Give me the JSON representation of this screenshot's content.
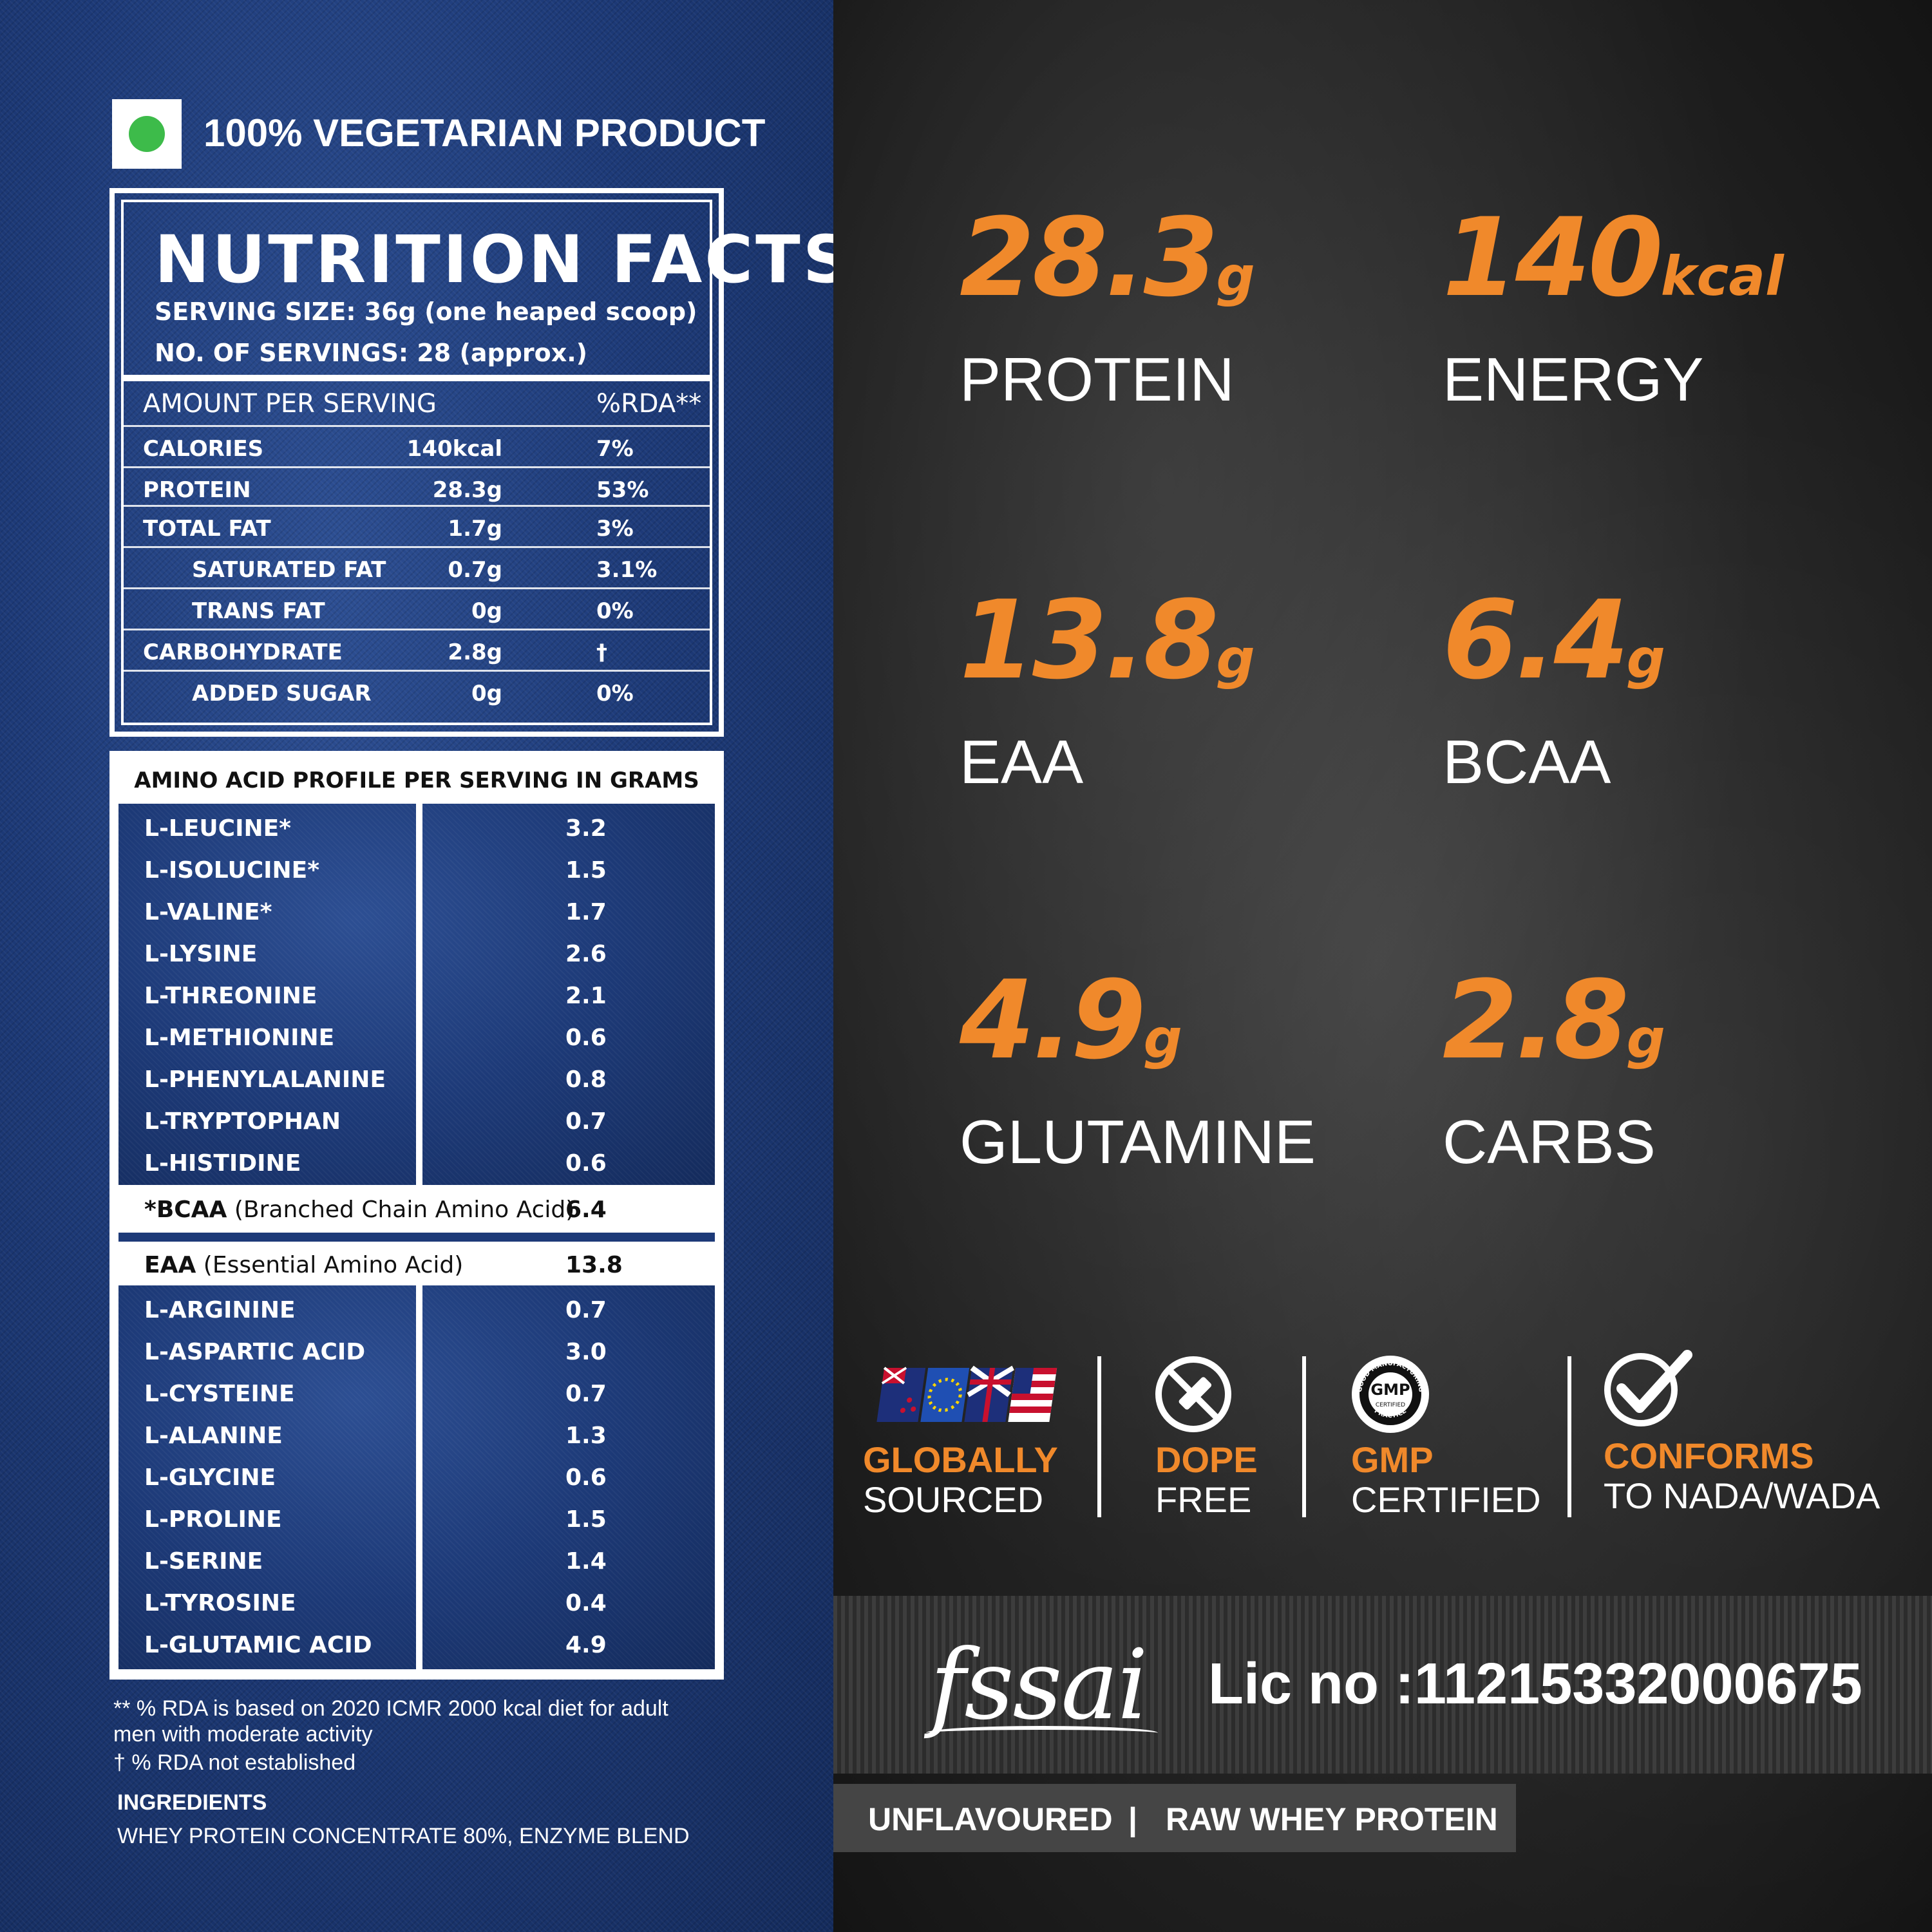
{
  "veg_label": "100% VEGETARIAN PRODUCT",
  "nutrition": {
    "title": "NUTRITION FACTS",
    "serving_size": "SERVING SIZE: 36g (one heaped scoop)",
    "servings": "NO. OF SERVINGS: 28 (approx.)",
    "header_amount": "AMOUNT PER SERVING",
    "header_rda": "%RDA**",
    "rows": [
      {
        "name": "CALORIES",
        "amount": "140kcal",
        "rda": "7%"
      },
      {
        "name": "PROTEIN",
        "amount": "28.3g",
        "rda": "53%"
      },
      {
        "name": "TOTAL FAT",
        "amount": "1.7g",
        "rda": "3%"
      },
      {
        "name": "SATURATED FAT",
        "amount": "0.7g",
        "rda": "3.1%"
      },
      {
        "name": "TRANS FAT",
        "amount": "0g",
        "rda": "0%"
      },
      {
        "name": "CARBOHYDRATE",
        "amount": "2.8g",
        "rda": "†"
      },
      {
        "name": "ADDED SUGAR",
        "amount": "0g",
        "rda": "0%"
      }
    ]
  },
  "amino": {
    "title": "AMINO ACID PROFILE PER SERVING IN GRAMS",
    "group1": [
      {
        "name": "L-LEUCINE*",
        "value": "3.2"
      },
      {
        "name": "L-ISOLUCINE*",
        "value": "1.5"
      },
      {
        "name": "L-VALINE*",
        "value": "1.7"
      },
      {
        "name": "L-LYSINE",
        "value": "2.6"
      },
      {
        "name": "L-THREONINE",
        "value": "2.1"
      },
      {
        "name": "L-METHIONINE",
        "value": "0.6"
      },
      {
        "name": "L-PHENYLALANINE",
        "value": "0.8"
      },
      {
        "name": "L-TRYPTOPHAN",
        "value": "0.7"
      },
      {
        "name": "L-HISTIDINE",
        "value": "0.6"
      }
    ],
    "bcaa": {
      "label": "*BCAA",
      "desc": " (Branched Chain Amino Acid)",
      "value": "6.4"
    },
    "eaa": {
      "label": "EAA",
      "desc": " (Essential Amino Acid)",
      "value": "13.8"
    },
    "group2": [
      {
        "name": "L-ARGININE",
        "value": "0.7"
      },
      {
        "name": "L-ASPARTIC ACID",
        "value": "3.0"
      },
      {
        "name": "L-CYSTEINE",
        "value": "0.7"
      },
      {
        "name": "L-ALANINE",
        "value": "1.3"
      },
      {
        "name": "L-GLYCINE",
        "value": "0.6"
      },
      {
        "name": "L-PROLINE",
        "value": "1.5"
      },
      {
        "name": "L-SERINE",
        "value": "1.4"
      },
      {
        "name": "L-TYROSINE",
        "value": "0.4"
      },
      {
        "name": "L-GLUTAMIC ACID",
        "value": "4.9"
      }
    ]
  },
  "footnotes": {
    "rda_line1": "** % RDA is based on 2020 ICMR 2000 kcal diet for adult",
    "rda_line2": "men with moderate activity",
    "dagger": "† % RDA not established",
    "ingredients_title": "INGREDIENTS",
    "ingredients": "WHEY  PROTEIN  CONCENTRATE  80%,  ENZYME  BLEND"
  },
  "stats": [
    {
      "value": "28.3",
      "unit": "g",
      "label": "PROTEIN"
    },
    {
      "value": "140",
      "unit": "kcal",
      "label": "ENERGY"
    },
    {
      "value": "13.8",
      "unit": "g",
      "label": "EAA"
    },
    {
      "value": "6.4",
      "unit": "g",
      "label": "BCAA"
    },
    {
      "value": "4.9",
      "unit": "g",
      "label": "GLUTAMINE"
    },
    {
      "value": "2.8",
      "unit": "g",
      "label": "CARBS"
    }
  ],
  "badges": [
    {
      "icon": "flags-icon",
      "top": "GLOBALLY",
      "bottom": "SOURCED"
    },
    {
      "icon": "no-dope-icon",
      "top": "DOPE",
      "bottom": "FREE"
    },
    {
      "icon": "gmp-seal-icon",
      "top": "GMP",
      "bottom": "CERTIFIED",
      "seal_top": "GOOD MANUFACTURING",
      "seal_mid": "GMP",
      "seal_sub": "CERTIFIED",
      "seal_bottom": "PRACTICE"
    },
    {
      "icon": "checkmark-icon",
      "top": "CONFORMS",
      "bottom": "TO NADA/WADA"
    }
  ],
  "fssai": {
    "logo": "fssai",
    "license": "Lic no :11215332000675"
  },
  "variant": {
    "flavour": "UNFLAVOURED",
    "sep": "|",
    "product": "RAW WHEY PROTEIN"
  },
  "colors": {
    "accent": "#f0892b",
    "denim": "#1d3a78",
    "veg_green": "#3dbb4a"
  }
}
